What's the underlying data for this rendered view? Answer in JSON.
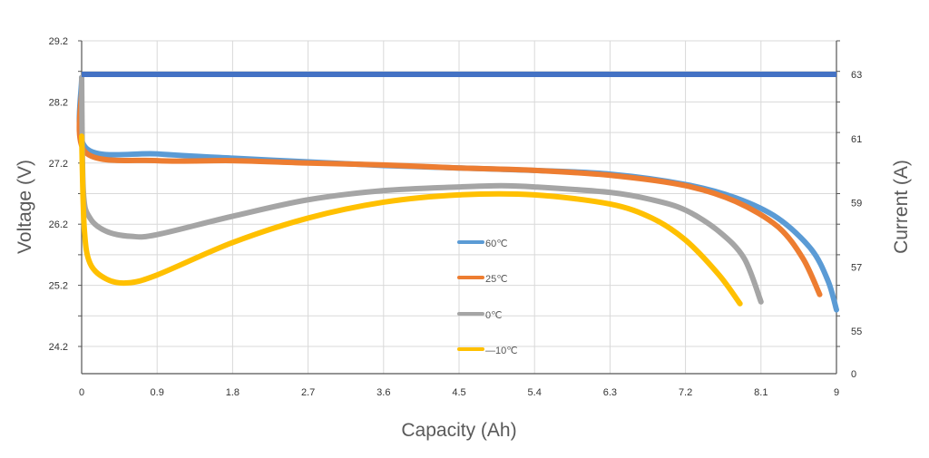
{
  "chart_data": {
    "type": "line",
    "xlabel": "Capacity (Ah)",
    "ylabel": "Voltage (V)",
    "y2label": "Current (A)",
    "xlim": [
      0,
      9
    ],
    "ylim": [
      23.75,
      29.2
    ],
    "x_ticks": [
      "0",
      "0.9",
      "1.8",
      "2.7",
      "3.6",
      "4.5",
      "5.4",
      "6.3",
      "7.2",
      "8.1",
      "9"
    ],
    "y_ticks": [
      "29.2",
      "28.2",
      "27.2",
      "26.2",
      "25.2",
      "24.2"
    ],
    "y2_ticks": [
      "63",
      "61",
      "59",
      "57",
      "55",
      "0"
    ],
    "grid": true,
    "legend_placement": "center",
    "current_series": {
      "color": "#4472C4",
      "x": [
        0,
        9
      ],
      "y": [
        63,
        63
      ]
    },
    "series": [
      {
        "name": "60℃",
        "color": "#5B9BD5",
        "x": [
          0,
          0.05,
          0.9,
          1.8,
          2.7,
          3.6,
          4.5,
          5.4,
          6.3,
          7.2,
          7.8,
          8.3,
          8.7,
          8.9,
          9.0
        ],
        "y": [
          28.6,
          27.45,
          27.35,
          27.28,
          27.22,
          27.16,
          27.12,
          27.08,
          27.02,
          26.85,
          26.63,
          26.3,
          25.79,
          25.27,
          24.8
        ]
      },
      {
        "name": "25℃",
        "color": "#ED7D31",
        "x": [
          0,
          0.05,
          0.9,
          1.8,
          2.7,
          3.6,
          4.5,
          5.4,
          6.3,
          7.2,
          7.8,
          8.3,
          8.6,
          8.8
        ],
        "y": [
          28.4,
          27.37,
          27.24,
          27.24,
          27.2,
          27.17,
          27.12,
          27.08,
          27.0,
          26.83,
          26.57,
          26.16,
          25.64,
          25.05
        ]
      },
      {
        "name": "0℃",
        "color": "#A5A5A5",
        "x": [
          0,
          0.02,
          0.1,
          0.3,
          0.6,
          0.9,
          1.8,
          2.7,
          3.6,
          4.5,
          5.0,
          5.4,
          6.3,
          6.8,
          7.2,
          7.6,
          7.9,
          8.1
        ],
        "y": [
          28.6,
          26.75,
          26.3,
          26.08,
          26.0,
          26.03,
          26.33,
          26.6,
          26.75,
          26.81,
          26.83,
          26.81,
          26.72,
          26.6,
          26.43,
          26.08,
          25.64,
          24.93
        ]
      },
      {
        "name": "—10℃",
        "color": "#FFC000",
        "x": [
          0,
          0.03,
          0.1,
          0.3,
          0.55,
          0.9,
          1.8,
          2.7,
          3.6,
          4.5,
          5.4,
          6.3,
          6.8,
          7.2,
          7.6,
          7.85
        ],
        "y": [
          27.64,
          26.16,
          25.56,
          25.3,
          25.24,
          25.37,
          25.9,
          26.3,
          26.56,
          26.68,
          26.68,
          26.53,
          26.3,
          25.94,
          25.37,
          24.9
        ]
      }
    ]
  }
}
